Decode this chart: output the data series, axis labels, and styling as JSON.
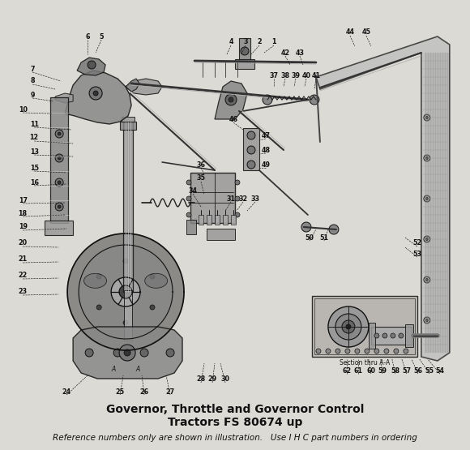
{
  "title_line1": "Governor, Throttle and Governor Control",
  "title_line2": "Tractors FS 80674 up",
  "subtitle": "Reference numbers only are shown in illustration.   Use I H C part numbers in ordering",
  "bg_color": "#dcdad4",
  "fig_width": 5.8,
  "fig_height": 5.55,
  "dpi": 100,
  "title_fontsize": 10,
  "subtitle_fontsize": 7.5
}
